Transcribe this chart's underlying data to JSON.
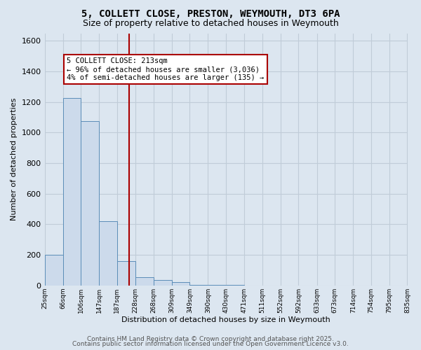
{
  "title_line1": "5, COLLETT CLOSE, PRESTON, WEYMOUTH, DT3 6PA",
  "title_line2": "Size of property relative to detached houses in Weymouth",
  "xlabel": "Distribution of detached houses by size in Weymouth",
  "ylabel": "Number of detached properties",
  "bins": [
    25,
    66,
    106,
    147,
    187,
    228,
    268,
    309,
    349,
    390,
    430,
    471,
    511,
    552,
    592,
    633,
    673,
    714,
    754,
    795,
    835
  ],
  "bin_labels": [
    "25sqm",
    "66sqm",
    "106sqm",
    "147sqm",
    "187sqm",
    "228sqm",
    "268sqm",
    "309sqm",
    "349sqm",
    "390sqm",
    "430sqm",
    "471sqm",
    "511sqm",
    "552sqm",
    "592sqm",
    "633sqm",
    "673sqm",
    "714sqm",
    "754sqm",
    "795sqm",
    "835sqm"
  ],
  "bar_heights": [
    200,
    1225,
    1075,
    420,
    160,
    55,
    35,
    20,
    5,
    5,
    5,
    0,
    0,
    0,
    0,
    0,
    0,
    0,
    0,
    0
  ],
  "bar_color": "#ccdaeb",
  "bar_edge_color": "#5b8db8",
  "property_line_x": 213,
  "property_line_color": "#aa0000",
  "annotation_text": "5 COLLETT CLOSE: 213sqm\n← 96% of detached houses are smaller (3,036)\n4% of semi-detached houses are larger (135) →",
  "annotation_box_color": "#ffffff",
  "annotation_box_edge_color": "#aa0000",
  "ylim": [
    0,
    1650
  ],
  "yticks": [
    0,
    200,
    400,
    600,
    800,
    1000,
    1200,
    1400,
    1600
  ],
  "grid_color": "#c0ccd8",
  "background_color": "#dce6f0",
  "footer_line1": "Contains HM Land Registry data © Crown copyright and database right 2025.",
  "footer_line2": "Contains public sector information licensed under the Open Government Licence v3.0.",
  "title_fontsize": 10,
  "subtitle_fontsize": 9,
  "annotation_fontsize": 7.5,
  "ylabel_fontsize": 8,
  "xlabel_fontsize": 8,
  "footer_fontsize": 6.5,
  "ytick_fontsize": 8,
  "xtick_fontsize": 6.5
}
